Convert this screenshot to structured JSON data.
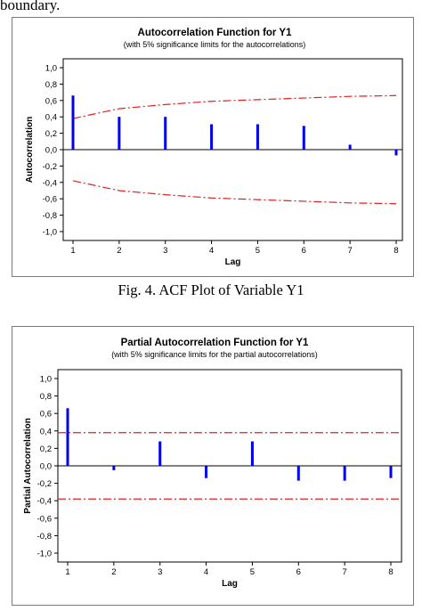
{
  "header_fragment": "boundary.",
  "captions": {
    "fig4": "Fig. 4. ACF Plot of  Variable Y1"
  },
  "colors": {
    "bar": "#0000ee",
    "limit": "#e02020",
    "axis": "#000000",
    "frame": "#7a7a7a"
  },
  "chart_data": [
    {
      "type": "bar",
      "title": "Autocorrelation Function for Y1",
      "subtitle": "(with 5% significance limits for the autocorrelations)",
      "xlabel": "Lag",
      "ylabel": "Autocorrelation",
      "x": [
        1,
        2,
        3,
        4,
        5,
        6,
        7,
        8
      ],
      "values": [
        0.66,
        0.4,
        0.4,
        0.31,
        0.31,
        0.29,
        0.06,
        -0.07
      ],
      "ylim": [
        -1.0,
        1.0
      ],
      "yticks": [
        "-1,0",
        "-0,8",
        "-0,6",
        "-0,4",
        "-0,2",
        "0,0",
        "0,2",
        "0,4",
        "0,6",
        "0,8",
        "1,0"
      ],
      "xticks": [
        "1",
        "2",
        "3",
        "4",
        "5",
        "6",
        "7",
        "8"
      ],
      "significance_upper": [
        0.38,
        0.5,
        0.55,
        0.59,
        0.61,
        0.63,
        0.65,
        0.66
      ],
      "significance_lower": [
        -0.38,
        -0.5,
        -0.55,
        -0.59,
        -0.61,
        -0.63,
        -0.65,
        -0.66
      ],
      "grid": false
    },
    {
      "type": "bar",
      "title": "Partial Autocorrelation Function for Y1",
      "subtitle": "(with 5% significance limits for the partial autocorrelations)",
      "xlabel": "Lag",
      "ylabel": "Partial Autocorrelation",
      "x": [
        1,
        2,
        3,
        4,
        5,
        6,
        7,
        8
      ],
      "values": [
        0.66,
        -0.05,
        0.28,
        -0.14,
        0.28,
        -0.17,
        -0.17,
        -0.14
      ],
      "ylim": [
        -1.0,
        1.0
      ],
      "yticks": [
        "-1,0",
        "-0,8",
        "-0,6",
        "-0,4",
        "-0,2",
        "0,0",
        "0,2",
        "0,4",
        "0,6",
        "0,8",
        "1,0"
      ],
      "xticks": [
        "1",
        "2",
        "3",
        "4",
        "5",
        "6",
        "7",
        "8"
      ],
      "significance_upper": [
        0.38,
        0.38,
        0.38,
        0.38,
        0.38,
        0.38,
        0.38,
        0.38
      ],
      "significance_lower": [
        -0.38,
        -0.38,
        -0.38,
        -0.38,
        -0.38,
        -0.38,
        -0.38,
        -0.38
      ],
      "grid": false
    }
  ]
}
